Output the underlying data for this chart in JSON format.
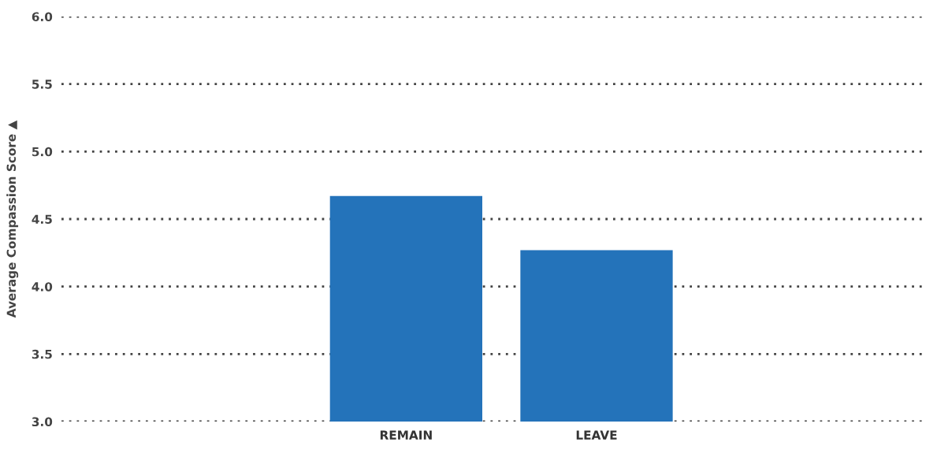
{
  "chart_data": {
    "type": "bar",
    "ylabel": "Average Compassion Score ▲",
    "categories": [
      "REMAIN",
      "LEAVE"
    ],
    "values": [
      4.67,
      4.27
    ],
    "color": "#2473ba",
    "ylim": [
      3.0,
      6.0
    ],
    "yticks": [
      {
        "value": 3.0,
        "label": "3.0"
      },
      {
        "value": 3.5,
        "label": "3.5"
      },
      {
        "value": 4.0,
        "label": "4.0"
      },
      {
        "value": 4.5,
        "label": "4.5"
      },
      {
        "value": 5.0,
        "label": "5.0"
      },
      {
        "value": 5.5,
        "label": "5.5"
      },
      {
        "value": 6.0,
        "label": "6.0"
      }
    ],
    "grid": "y"
  }
}
